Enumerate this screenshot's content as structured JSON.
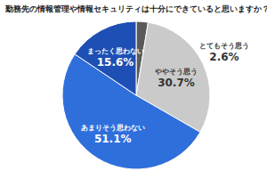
{
  "chart_data": {
    "type": "pie",
    "title": "勤務先の情報管理や情報セキュリティは十分にできていると思いますか？",
    "categories": [
      "とてもそう思う",
      "ややそう思う",
      "あまりそう思わない",
      "まったく思わない"
    ],
    "values": [
      2.6,
      30.7,
      51.1,
      15.6
    ],
    "value_labels": [
      "2.6%",
      "30.7%",
      "51.1%",
      "15.6%"
    ],
    "colors": [
      "#5a5a5a",
      "#cacaca",
      "#2f6fdc",
      "#1e4fb4"
    ],
    "data_labels": true
  }
}
